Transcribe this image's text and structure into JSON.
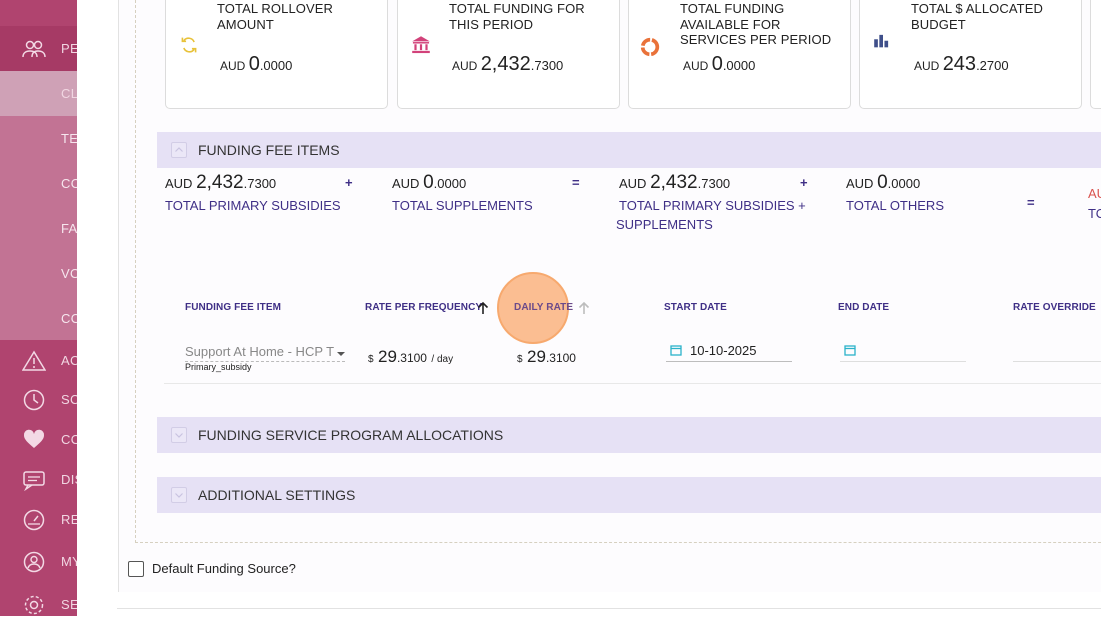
{
  "sidebar": {
    "items": [
      {
        "label": "PE",
        "icon": "people-icon"
      },
      {
        "label": "CL",
        "icon": ""
      },
      {
        "label": "TE",
        "icon": ""
      },
      {
        "label": "CO",
        "icon": ""
      },
      {
        "label": "FA",
        "icon": ""
      },
      {
        "label": "VO",
        "icon": ""
      },
      {
        "label": "CO",
        "icon": ""
      },
      {
        "label": "AC",
        "icon": "warning-icon"
      },
      {
        "label": "SC",
        "icon": "clock-icon"
      },
      {
        "label": "CO",
        "icon": "heart-icon"
      },
      {
        "label": "DIS",
        "icon": "chat-icon"
      },
      {
        "label": "RE",
        "icon": "gauge-icon"
      },
      {
        "label": "MY",
        "icon": "user-icon"
      },
      {
        "label": "SE",
        "icon": "gear-icon"
      }
    ]
  },
  "cards": [
    {
      "title": "TOTAL ROLLOVER AMOUNT",
      "currency": "AUD",
      "int": "0",
      "dec": ".0000",
      "icon": "refresh-icon"
    },
    {
      "title": "TOTAL FUNDING FOR THIS PERIOD",
      "currency": "AUD",
      "int": "2,432",
      "dec": ".7300",
      "icon": "bank-icon"
    },
    {
      "title": "TOTAL FUNDING AVAILABLE FOR SERVICES PER PERIOD",
      "currency": "AUD",
      "int": "0",
      "dec": ".0000",
      "icon": "donut-icon"
    },
    {
      "title": "TOTAL $ ALLOCATED BUDGET",
      "currency": "AUD",
      "int": "243",
      "dec": ".2700",
      "icon": "bar-chart-icon"
    }
  ],
  "sections": {
    "fee_items": "FUNDING FEE ITEMS",
    "program_allocations": "FUNDING SERVICE PROGRAM ALLOCATIONS",
    "additional_settings": "ADDITIONAL SETTINGS"
  },
  "totals": [
    {
      "currency": "AUD",
      "int": "2,432",
      "dec": ".7300",
      "label": "TOTAL PRIMARY SUBSIDIES"
    },
    {
      "currency": "AUD",
      "int": "0",
      "dec": ".0000",
      "label": "TOTAL SUPPLEMENTS"
    },
    {
      "currency": "AUD",
      "int": "2,432",
      "dec": ".7300",
      "label": "TOTAL PRIMARY SUBSIDIES +",
      "label2": "SUPPLEMENTS"
    },
    {
      "currency": "AUD",
      "int": "0",
      "dec": ".0000",
      "label": "TOTAL OTHERS"
    }
  ],
  "operators": {
    "plus": "+",
    "equals": "="
  },
  "cutoff": {
    "top": "AU",
    "bottom": "TO"
  },
  "table": {
    "headers": {
      "item": "FUNDING FEE ITEM",
      "rate_per_frequency": "RATE PER FREQUENCY",
      "daily_rate": "DAILY RATE",
      "start_date": "START DATE",
      "end_date": "END DATE",
      "rate_override": "RATE OVERRIDE"
    },
    "row": {
      "item_value": "Support At Home - HCP T",
      "item_type": "Primary_subsidy",
      "rate_currency": "$",
      "rate_int": "29",
      "rate_dec": ".3100",
      "rate_unit": "/ day",
      "daily_currency": "$",
      "daily_int": "29",
      "daily_dec": ".3100",
      "start_date": "10-10-2025",
      "end_date": "",
      "rate_override": ""
    }
  },
  "default_funding_label": "Default Funding Source?",
  "colors": {
    "sidebar": "#b0446f",
    "accent": "#3f2f86",
    "section_bg": "#e6e1f5",
    "error": "#d9534f"
  }
}
